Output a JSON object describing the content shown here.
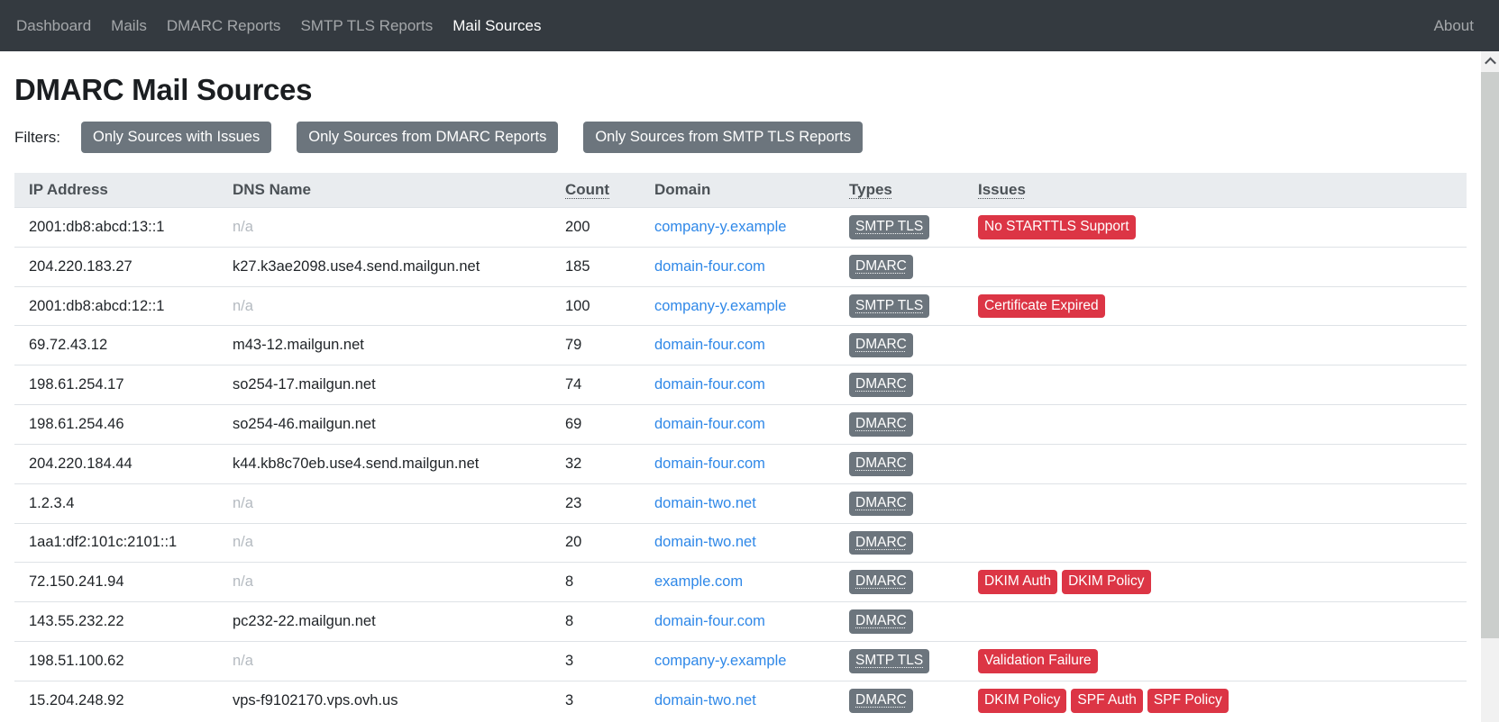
{
  "nav": {
    "items": [
      {
        "label": "Dashboard",
        "active": false
      },
      {
        "label": "Mails",
        "active": false
      },
      {
        "label": "DMARC Reports",
        "active": false
      },
      {
        "label": "SMTP TLS Reports",
        "active": false
      },
      {
        "label": "Mail Sources",
        "active": true
      }
    ],
    "about_label": "About"
  },
  "page": {
    "title": "DMARC Mail Sources"
  },
  "filters": {
    "label": "Filters:",
    "buttons": [
      {
        "label": "Only Sources with Issues"
      },
      {
        "label": "Only Sources from DMARC Reports"
      },
      {
        "label": "Only Sources from SMTP TLS Reports"
      }
    ]
  },
  "table": {
    "columns": [
      {
        "label": "IP Address",
        "dotted_underline": false
      },
      {
        "label": "DNS Name",
        "dotted_underline": false
      },
      {
        "label": "Count",
        "dotted_underline": true
      },
      {
        "label": "Domain",
        "dotted_underline": false
      },
      {
        "label": "Types",
        "dotted_underline": true
      },
      {
        "label": "Issues",
        "dotted_underline": true
      }
    ],
    "na_text": "n/a",
    "rows": [
      {
        "ip": "2001:db8:abcd:13::1",
        "dns": null,
        "count": "200",
        "domain": "company-y.example",
        "types": [
          "SMTP TLS"
        ],
        "issues": [
          "No STARTTLS Support"
        ]
      },
      {
        "ip": "204.220.183.27",
        "dns": "k27.k3ae2098.use4.send.mailgun.net",
        "count": "185",
        "domain": "domain-four.com",
        "types": [
          "DMARC"
        ],
        "issues": []
      },
      {
        "ip": "2001:db8:abcd:12::1",
        "dns": null,
        "count": "100",
        "domain": "company-y.example",
        "types": [
          "SMTP TLS"
        ],
        "issues": [
          "Certificate Expired"
        ]
      },
      {
        "ip": "69.72.43.12",
        "dns": "m43-12.mailgun.net",
        "count": "79",
        "domain": "domain-four.com",
        "types": [
          "DMARC"
        ],
        "issues": []
      },
      {
        "ip": "198.61.254.17",
        "dns": "so254-17.mailgun.net",
        "count": "74",
        "domain": "domain-four.com",
        "types": [
          "DMARC"
        ],
        "issues": []
      },
      {
        "ip": "198.61.254.46",
        "dns": "so254-46.mailgun.net",
        "count": "69",
        "domain": "domain-four.com",
        "types": [
          "DMARC"
        ],
        "issues": []
      },
      {
        "ip": "204.220.184.44",
        "dns": "k44.kb8c70eb.use4.send.mailgun.net",
        "count": "32",
        "domain": "domain-four.com",
        "types": [
          "DMARC"
        ],
        "issues": []
      },
      {
        "ip": "1.2.3.4",
        "dns": null,
        "count": "23",
        "domain": "domain-two.net",
        "types": [
          "DMARC"
        ],
        "issues": []
      },
      {
        "ip": "1aa1:df2:101c:2101::1",
        "dns": null,
        "count": "20",
        "domain": "domain-two.net",
        "types": [
          "DMARC"
        ],
        "issues": []
      },
      {
        "ip": "72.150.241.94",
        "dns": null,
        "count": "8",
        "domain": "example.com",
        "types": [
          "DMARC"
        ],
        "issues": [
          "DKIM Auth",
          "DKIM Policy"
        ]
      },
      {
        "ip": "143.55.232.22",
        "dns": "pc232-22.mailgun.net",
        "count": "8",
        "domain": "domain-four.com",
        "types": [
          "DMARC"
        ],
        "issues": []
      },
      {
        "ip": "198.51.100.62",
        "dns": null,
        "count": "3",
        "domain": "company-y.example",
        "types": [
          "SMTP TLS"
        ],
        "issues": [
          "Validation Failure"
        ]
      },
      {
        "ip": "15.204.248.92",
        "dns": "vps-f9102170.vps.ovh.us",
        "count": "3",
        "domain": "domain-two.net",
        "types": [
          "DMARC"
        ],
        "issues": [
          "DKIM Policy",
          "SPF Auth",
          "SPF Policy"
        ]
      }
    ]
  },
  "colors": {
    "navbar_bg": "#343a40",
    "nav_link_inactive": "#8e959b",
    "nav_link_active": "#ffffff",
    "filter_button_bg": "#6c757d",
    "table_header_bg": "#e9ecef",
    "row_border": "#dee2e6",
    "domain_link": "#2f88e8",
    "type_badge_bg": "#6c757d",
    "issue_badge_bg": "#dc3545",
    "na_text": "#b4bac0"
  }
}
